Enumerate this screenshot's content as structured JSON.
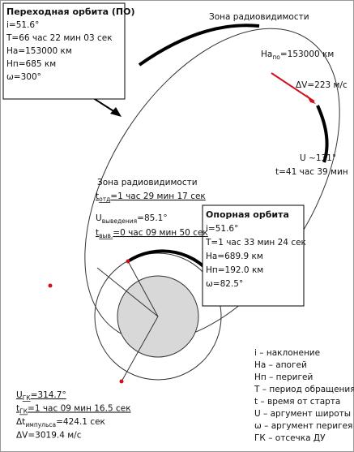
{
  "transfer_orbit": {
    "title": "Переходная орбита (ПО)",
    "lines": [
      "i=51.6°",
      "T=66 час 22 мин 03 сек",
      "На=153000 км",
      "Нп=685 км",
      "ω=300°"
    ]
  },
  "visibility_top": "Зона радиовидимости",
  "apogee_label": {
    "base": "На",
    "sub": "по",
    "rest": "=153000 км"
  },
  "dv_apogee": "ΔV=223 м/с",
  "u_arc": "U ~131°",
  "t_arc": "t=41 час 39 мин",
  "visibility_mid": "Зона радиовидимости",
  "t_sep": {
    "base": "t",
    "sub": "отд",
    "rest": "=1 час 29 мин 17 сек"
  },
  "u_insertion": {
    "base": "U",
    "sub": "выведения",
    "rest": "=85.1°"
  },
  "t_insertion": {
    "base": "t",
    "sub": "выв.",
    "rest": "=0 час 09 мин 50 сек"
  },
  "parking_orbit": {
    "title": "Опорная орбита",
    "lines": [
      "i=51.6°",
      "T=1 час 33 мин 24 сек",
      "На=689.9 км",
      "Нп=192.0 км",
      "ω=82.5°"
    ]
  },
  "legend": [
    "i – наклонение",
    "На – апогей",
    "Нп – перигей",
    "T – период обращения",
    "t – время от старта",
    "U – аргумент широты",
    "ω – аргумент перигея",
    "ГК – отсечка ДУ"
  ],
  "cutoff": [
    {
      "base": "U",
      "sub": "ГК",
      "rest": "=314.7°"
    },
    {
      "base": "t",
      "sub": "ГК",
      "rest": "=1 час 09 мин 16.5 сек"
    },
    {
      "base": "Δt",
      "sub": "импульса",
      "rest": "=424.1 сек"
    },
    {
      "base": "ΔV=3019.4 м/с",
      "sub": "",
      "rest": ""
    }
  ]
}
